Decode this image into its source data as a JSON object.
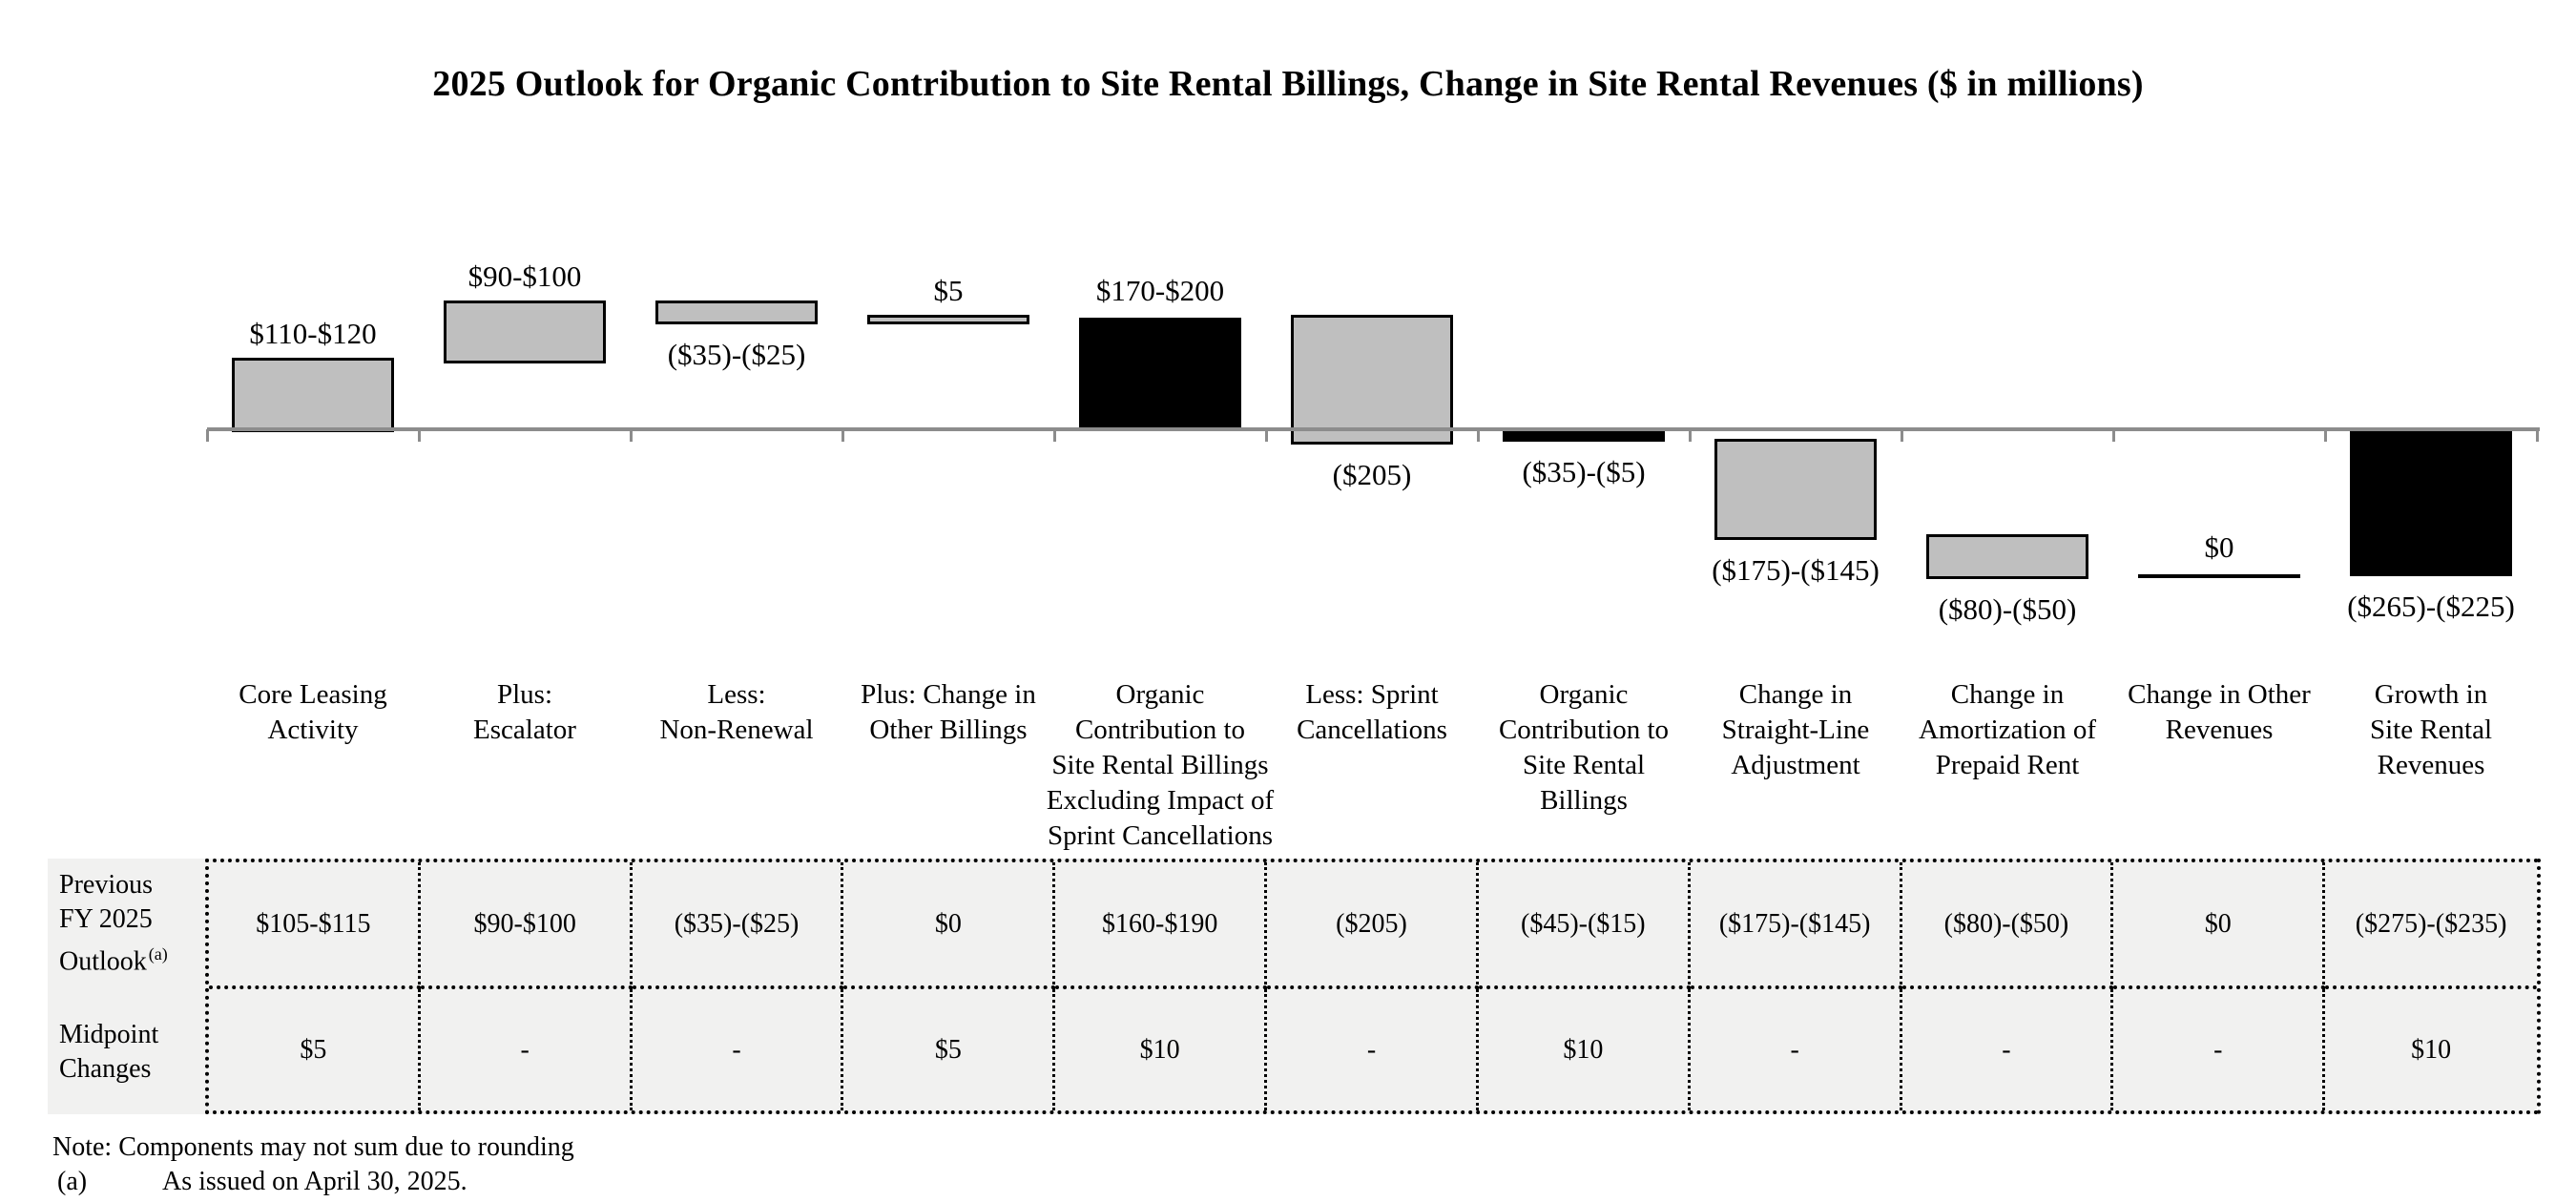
{
  "title": "2025 Outlook for Organic Contribution to Site Rental Billings, Change in Site Rental Revenues ($ in millions)",
  "chart_data": {
    "type": "bar",
    "subtype": "waterfall",
    "title": "2025 Outlook for Organic Contribution to Site Rental Billings, Change in Site Rental Revenues ($ in millions)",
    "unit": "$ in millions",
    "grid": false,
    "legend": false,
    "y_axis_visible": false,
    "baseline_value": 0,
    "colors": {
      "step_bar": "#bfbfbf",
      "total_bar": "#000000",
      "bar_border": "#000000",
      "axis": "#8c8c8c"
    },
    "categories": [
      {
        "label": "Core Leasing\nActivity",
        "value_label": "$110-$120",
        "value_range_millions": [
          110,
          120
        ],
        "bar_start": 0,
        "bar_end": 115,
        "style": "step",
        "value_label_position": "above"
      },
      {
        "label": "Plus:\nEscalator",
        "value_label": "$90-$100",
        "value_range_millions": [
          90,
          100
        ],
        "bar_start": 115,
        "bar_end": 210,
        "style": "step",
        "value_label_position": "above"
      },
      {
        "label": "Less:\nNon-Renewal",
        "value_label": "($35)-($25)",
        "value_range_millions": [
          -35,
          -25
        ],
        "bar_start": 210,
        "bar_end": 180,
        "style": "step",
        "value_label_position": "below"
      },
      {
        "label": "Plus: Change in\nOther Billings",
        "value_label": "$5",
        "value_range_millions": [
          5,
          5
        ],
        "bar_start": 180,
        "bar_end": 185,
        "style": "step",
        "value_label_position": "above"
      },
      {
        "label": "Organic\nContribution to\nSite Rental Billings\nExcluding Impact of\nSprint Cancellations",
        "value_label": "$170-$200",
        "value_range_millions": [
          170,
          200
        ],
        "bar_start": 0,
        "bar_end": 185,
        "style": "total",
        "value_label_position": "above"
      },
      {
        "label": "Less: Sprint\nCancellations",
        "value_label": "($205)",
        "value_range_millions": [
          -205,
          -205
        ],
        "bar_start": 185,
        "bar_end": -20,
        "style": "step",
        "value_label_position": "below"
      },
      {
        "label": "Organic\nContribution to\nSite Rental\nBillings",
        "value_label": "($35)-($5)",
        "value_range_millions": [
          -35,
          -5
        ],
        "bar_start": 0,
        "bar_end": -20,
        "style": "total",
        "value_label_position": "below"
      },
      {
        "label": "Change in\nStraight-Line\nAdjustment",
        "value_label": "($175)-($145)",
        "value_range_millions": [
          -175,
          -145
        ],
        "bar_start": -20,
        "bar_end": -180,
        "style": "step",
        "value_label_position": "below"
      },
      {
        "label": "Change in\nAmortization of\nPrepaid Rent",
        "value_label": "($80)-($50)",
        "value_range_millions": [
          -80,
          -50
        ],
        "bar_start": -180,
        "bar_end": -245,
        "style": "step",
        "value_label_position": "below"
      },
      {
        "label": "Change in Other\nRevenues",
        "value_label": "$0",
        "value_range_millions": [
          0,
          0
        ],
        "bar_start": -245,
        "bar_end": -245,
        "style": "zero-line",
        "value_label_position": "above"
      },
      {
        "label": "Growth in\nSite Rental\nRevenues",
        "value_label": "($265)-($225)",
        "value_range_millions": [
          -265,
          -225
        ],
        "bar_start": 0,
        "bar_end": -245,
        "style": "total",
        "value_label_position": "below"
      }
    ]
  },
  "table": {
    "row_headers": [
      {
        "text": "Previous\nFY 2025\nOutlook",
        "superscript": "(a)"
      },
      {
        "text": "Midpoint\nChanges",
        "superscript": ""
      }
    ],
    "rows": [
      {
        "cells": [
          "$105-$115",
          "$90-$100",
          "($35)-($25)",
          "$0",
          "$160-$190",
          "($205)",
          "($45)-($15)",
          "($175)-($145)",
          "($80)-($50)",
          "$0",
          "($275)-($235)"
        ]
      },
      {
        "cells": [
          "$5",
          "-",
          "-",
          "$5",
          "$10",
          "-",
          "$10",
          "-",
          "-",
          "-",
          "$10"
        ]
      }
    ]
  },
  "notes": {
    "note": "Note: Components may not sum due to rounding",
    "footnote_marker": "(a)",
    "footnote": "As issued on April 30, 2025."
  }
}
